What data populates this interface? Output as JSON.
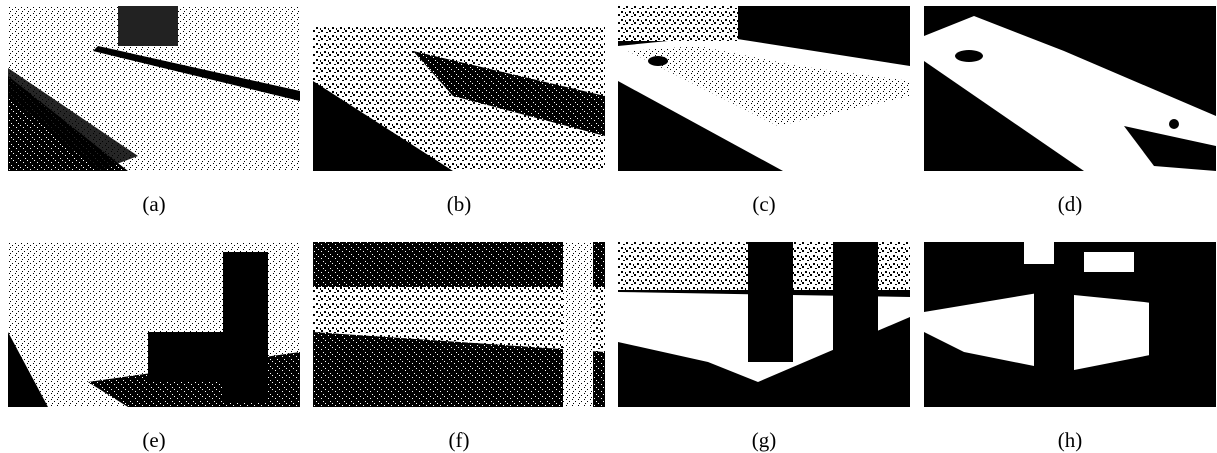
{
  "figure": {
    "panels": [
      {
        "id": "a",
        "caption": "(a)"
      },
      {
        "id": "b",
        "caption": "(b)"
      },
      {
        "id": "c",
        "caption": "(c)"
      },
      {
        "id": "d",
        "caption": "(d)"
      },
      {
        "id": "e",
        "caption": "(e)"
      },
      {
        "id": "f",
        "caption": "(f)"
      },
      {
        "id": "g",
        "caption": "(g)"
      },
      {
        "id": "h",
        "caption": "(h)"
      }
    ]
  }
}
